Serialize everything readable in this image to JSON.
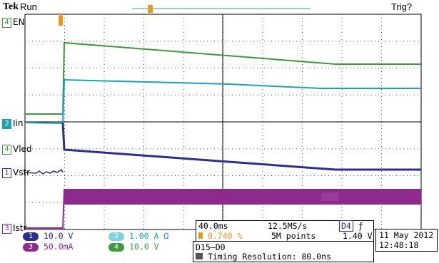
{
  "header": {
    "brand": "Tek",
    "run_state": "Run",
    "trigger_status": "Trig?"
  },
  "channels": {
    "en": {
      "num": "4",
      "label": "EN"
    },
    "iin": {
      "num": "2",
      "label": "Iin"
    },
    "vled": {
      "num": "4",
      "label": "Vled"
    },
    "vstr": {
      "num": "1",
      "label": "Vstr"
    },
    "istr": {
      "num": "3",
      "label": "Istr"
    }
  },
  "scale_readout": {
    "ch1": {
      "num": "1",
      "value": "10.0 V"
    },
    "ch2": {
      "num": "2",
      "value": "1.00 A  Ω"
    },
    "ch3": {
      "num": "3",
      "value": "50.0mA"
    },
    "ch4": {
      "num": "4",
      "value": "10.0 V"
    }
  },
  "timebase": {
    "time_per_div": "40.0ms",
    "sample_rate": "12.5MS/s",
    "trigger_position": "0.740 %",
    "record_length": "5M points",
    "trigger_source": "D4",
    "trigger_slope": "ƒ",
    "trigger_level": "1.40 V"
  },
  "digital": {
    "channels": "D15–D0",
    "timing_resolution": "Timing Resolution: 80.0ns"
  },
  "datetime": {
    "date": "11 May 2012",
    "time": "12:48:18"
  },
  "colors": {
    "ch1": "#2b2f8f",
    "ch2": "#1aa3b0",
    "ch3": "#8e2a8e",
    "ch4": "#3c9a3c",
    "trigger": "#e39a1c"
  }
}
